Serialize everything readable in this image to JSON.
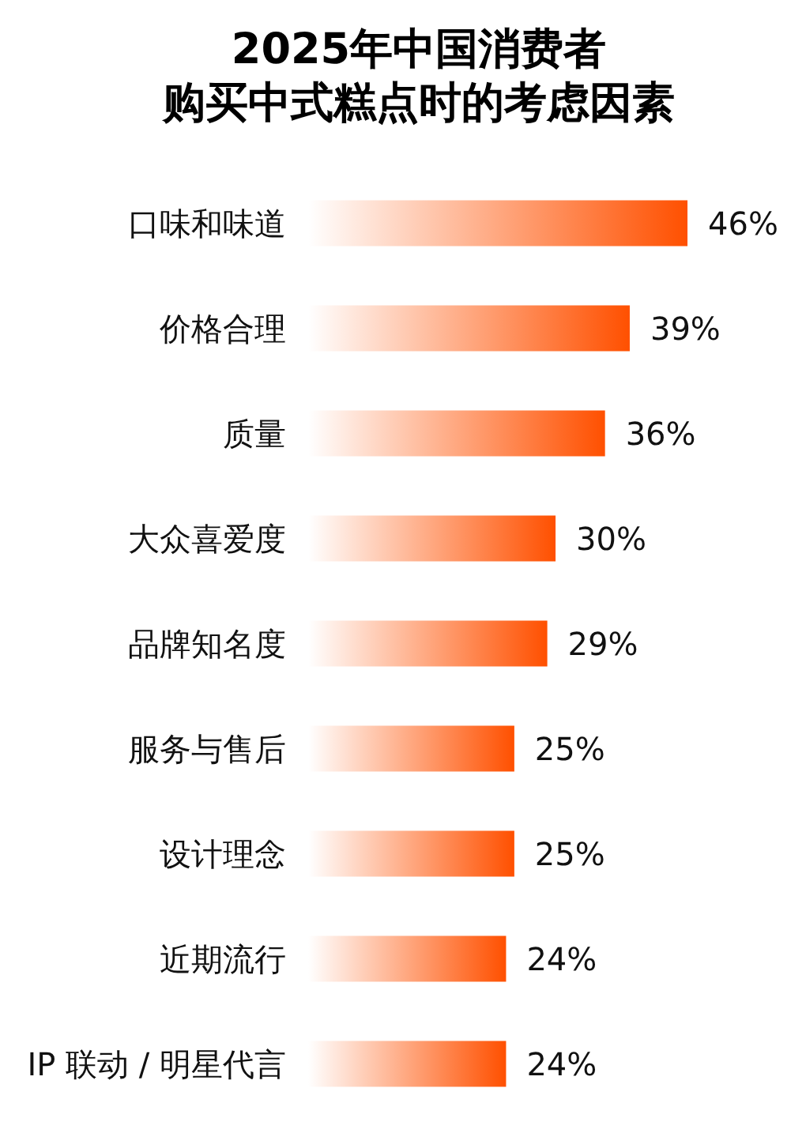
{
  "chart_data": {
    "type": "bar",
    "orientation": "horizontal",
    "title": "2025年中国消费者购买中式糕点时的考虑因素",
    "categories": [
      "口味和味道",
      "价格合理",
      "质量",
      "大众喜爱度",
      "品牌知名度",
      "服务与售后",
      "设计理念",
      "近期流行",
      "IP 联动 / 明星代言"
    ],
    "values": [
      46,
      39,
      36,
      30,
      29,
      25,
      25,
      24,
      24
    ],
    "value_labels": [
      "46%",
      "39%",
      "36%",
      "30%",
      "29%",
      "25%",
      "25%",
      "24%",
      "24%"
    ],
    "color": "#ff5000"
  }
}
